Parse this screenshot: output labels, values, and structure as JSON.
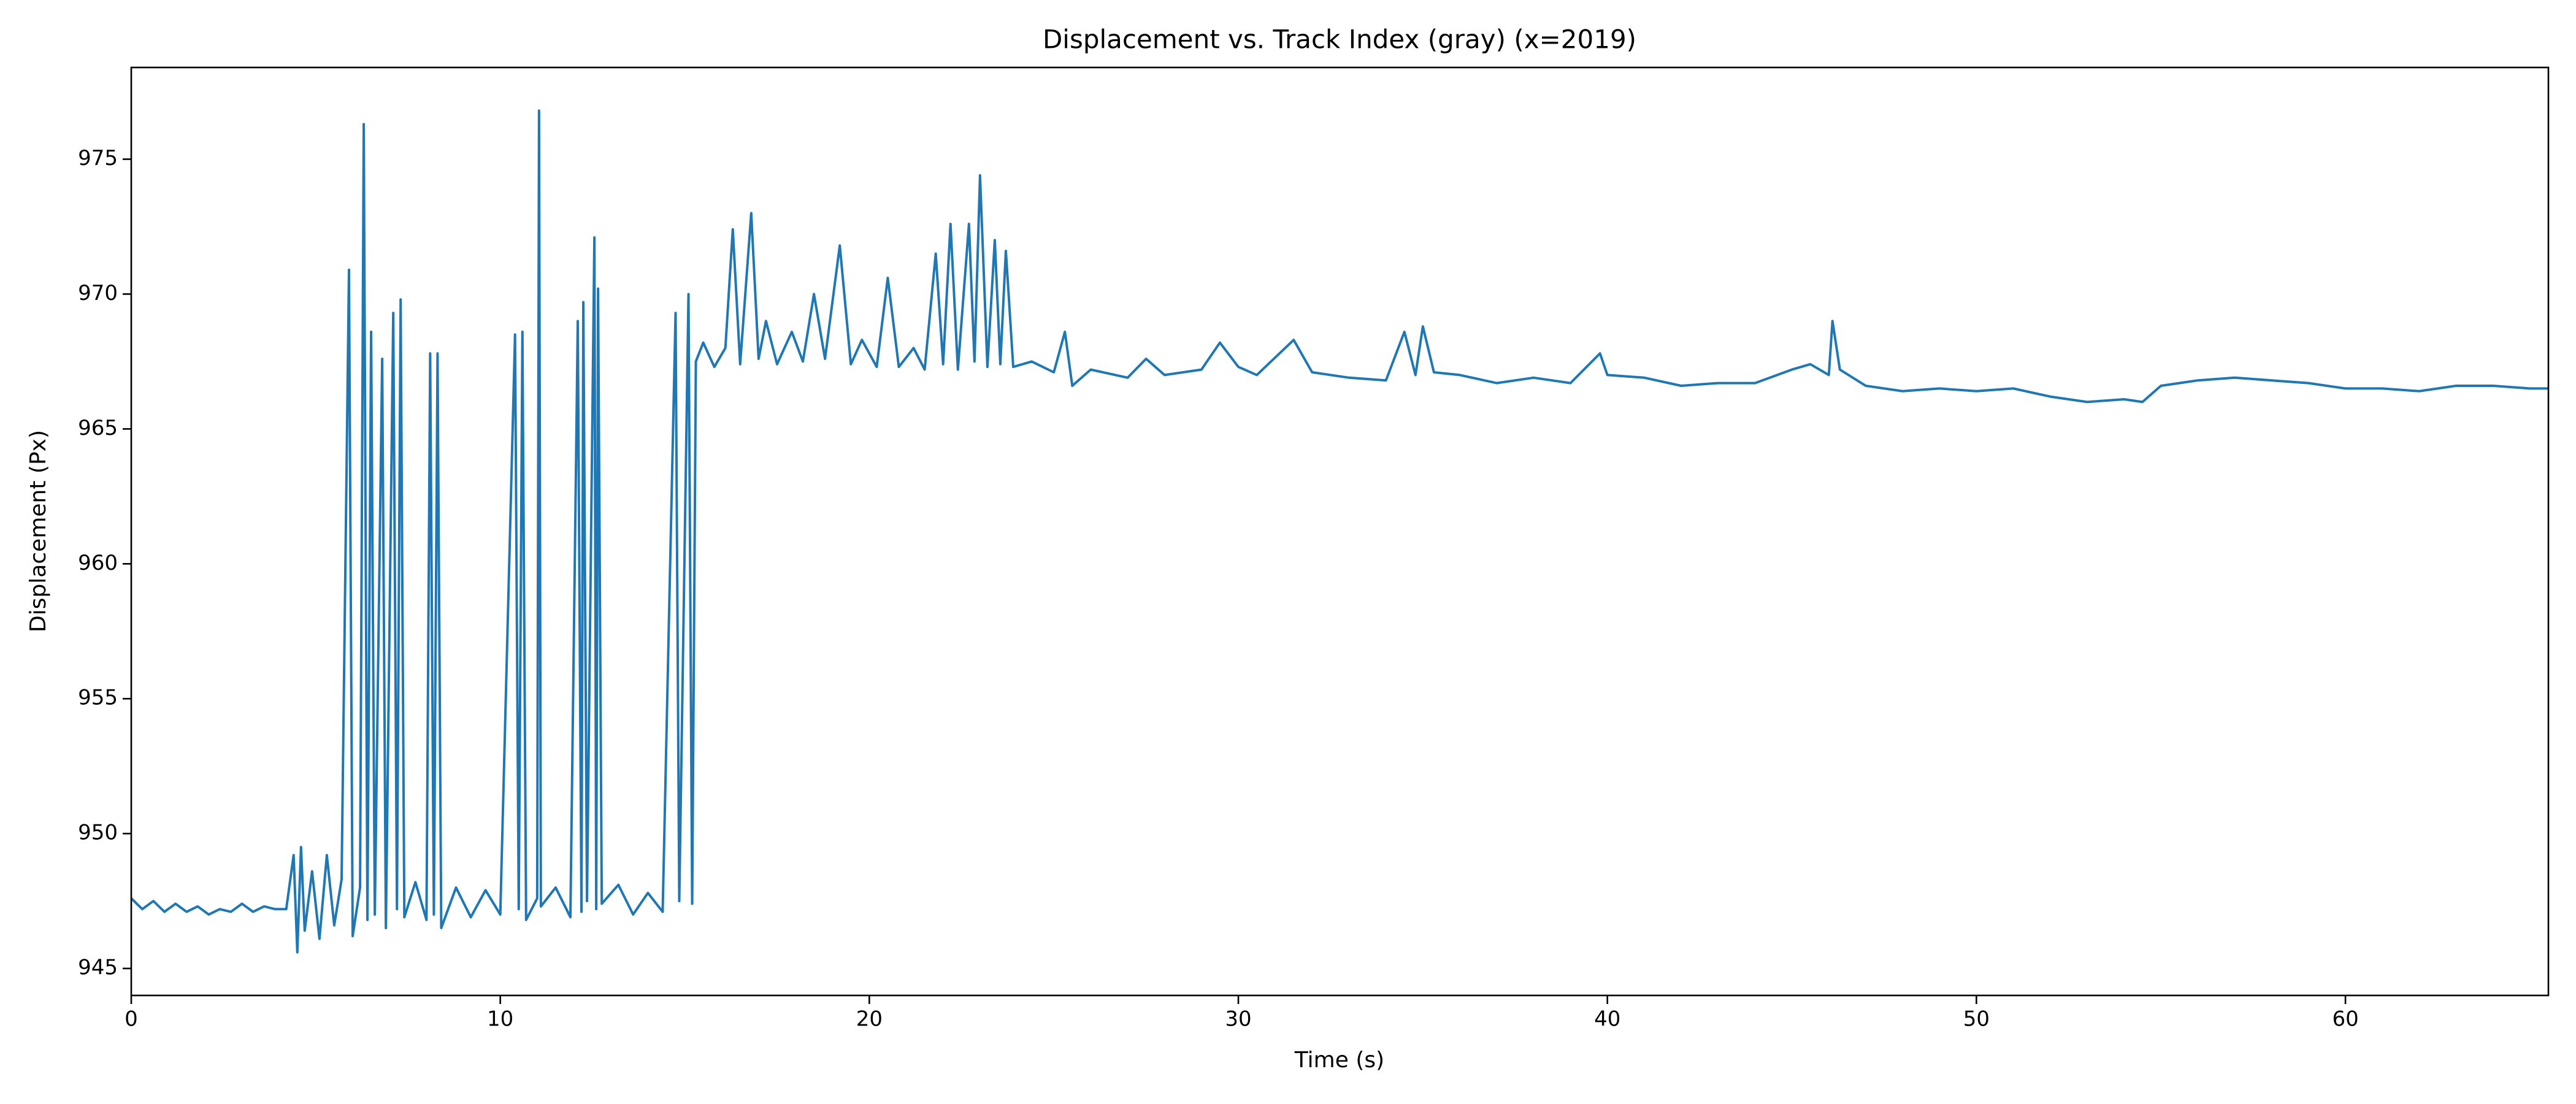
{
  "chart_data": {
    "type": "line",
    "title": "Displacement vs. Track Index (gray) (x=2019)",
    "x_label": "Time (s)",
    "y_label": "Displacement (Px)",
    "xlim": [
      0,
      65.5
    ],
    "ylim": [
      944.0,
      978.4
    ],
    "xticks": [
      0,
      10,
      20,
      30,
      40,
      50,
      60
    ],
    "yticks": [
      945,
      950,
      955,
      960,
      965,
      970,
      975
    ],
    "grid": false,
    "x": [
      0,
      0.3,
      0.6,
      0.9,
      1.2,
      1.5,
      1.8,
      2.1,
      2.4,
      2.7,
      3.0,
      3.3,
      3.6,
      3.9,
      4.2,
      4.4,
      4.5,
      4.6,
      4.7,
      4.9,
      5.1,
      5.3,
      5.5,
      5.7,
      5.9,
      6.0,
      6.2,
      6.3,
      6.4,
      6.5,
      6.6,
      6.8,
      6.9,
      7.1,
      7.2,
      7.3,
      7.4,
      7.7,
      8.0,
      8.1,
      8.2,
      8.3,
      8.4,
      8.8,
      9.2,
      9.6,
      10.0,
      10.4,
      10.5,
      10.6,
      10.7,
      11.0,
      11.05,
      11.1,
      11.5,
      11.9,
      12.1,
      12.2,
      12.25,
      12.35,
      12.55,
      12.6,
      12.65,
      12.75,
      13.2,
      13.6,
      14.0,
      14.4,
      14.75,
      14.85,
      15.1,
      15.2,
      15.3,
      15.5,
      15.8,
      16.1,
      16.3,
      16.5,
      16.8,
      17.0,
      17.2,
      17.5,
      17.9,
      18.2,
      18.5,
      18.8,
      19.2,
      19.5,
      19.8,
      20.2,
      20.5,
      20.8,
      21.2,
      21.5,
      21.8,
      22.0,
      22.2,
      22.4,
      22.7,
      22.85,
      23.0,
      23.2,
      23.4,
      23.55,
      23.7,
      23.9,
      24.4,
      25.0,
      25.3,
      25.5,
      26.0,
      27.0,
      27.5,
      28.0,
      29.0,
      29.5,
      30.0,
      30.5,
      31.5,
      32.0,
      33.0,
      34.0,
      34.5,
      34.8,
      35.0,
      35.3,
      36.0,
      37.0,
      38.0,
      39.0,
      39.8,
      40.0,
      41.0,
      42.0,
      43.0,
      44.0,
      45.0,
      45.5,
      46.0,
      46.1,
      46.3,
      47.0,
      48.0,
      49.0,
      50.0,
      51.0,
      52.0,
      53.0,
      54.0,
      54.5,
      55.0,
      56.0,
      57.0,
      58.0,
      59.0,
      60.0,
      61.0,
      62.0,
      63.0,
      64.0,
      65.0,
      65.5
    ],
    "series": [
      {
        "color": "#1f77b4",
        "values": [
          947.6,
          947.2,
          947.5,
          947.1,
          947.4,
          947.1,
          947.3,
          947.0,
          947.2,
          947.1,
          947.4,
          947.1,
          947.3,
          947.2,
          947.2,
          949.2,
          945.6,
          949.5,
          946.4,
          948.6,
          946.1,
          949.2,
          946.6,
          948.3,
          970.9,
          946.2,
          948.0,
          976.3,
          946.8,
          968.6,
          947.0,
          967.6,
          946.5,
          969.3,
          947.2,
          969.8,
          946.9,
          948.2,
          946.8,
          967.8,
          947.0,
          967.8,
          946.5,
          948.0,
          946.9,
          947.9,
          947.0,
          968.5,
          947.2,
          968.6,
          946.8,
          947.6,
          976.8,
          947.3,
          948.0,
          946.9,
          969.0,
          947.1,
          969.7,
          947.5,
          972.1,
          947.2,
          970.2,
          947.4,
          948.1,
          947.0,
          947.8,
          947.1,
          969.3,
          947.5,
          970.0,
          947.4,
          967.5,
          968.2,
          967.3,
          968.0,
          972.4,
          967.4,
          973.0,
          967.6,
          969.0,
          967.4,
          968.6,
          967.5,
          970.0,
          967.6,
          971.8,
          967.4,
          968.3,
          967.3,
          970.6,
          967.3,
          968.0,
          967.2,
          971.5,
          967.4,
          972.6,
          967.2,
          972.6,
          967.5,
          974.4,
          967.3,
          972.0,
          967.4,
          971.6,
          967.3,
          967.5,
          967.1,
          968.6,
          966.6,
          967.2,
          966.9,
          967.6,
          967.0,
          967.2,
          968.2,
          967.3,
          967.0,
          968.3,
          967.1,
          966.9,
          966.8,
          968.6,
          967.0,
          968.8,
          967.1,
          967.0,
          966.7,
          966.9,
          966.7,
          967.8,
          967.0,
          966.9,
          966.6,
          966.7,
          966.7,
          967.2,
          967.4,
          967.0,
          969.0,
          967.2,
          966.6,
          966.4,
          966.5,
          966.4,
          966.5,
          966.2,
          966.0,
          966.1,
          966.0,
          966.6,
          966.8,
          966.9,
          966.8,
          966.7,
          966.5,
          966.5,
          966.4,
          966.6,
          966.6,
          966.5,
          966.5
        ]
      }
    ]
  }
}
